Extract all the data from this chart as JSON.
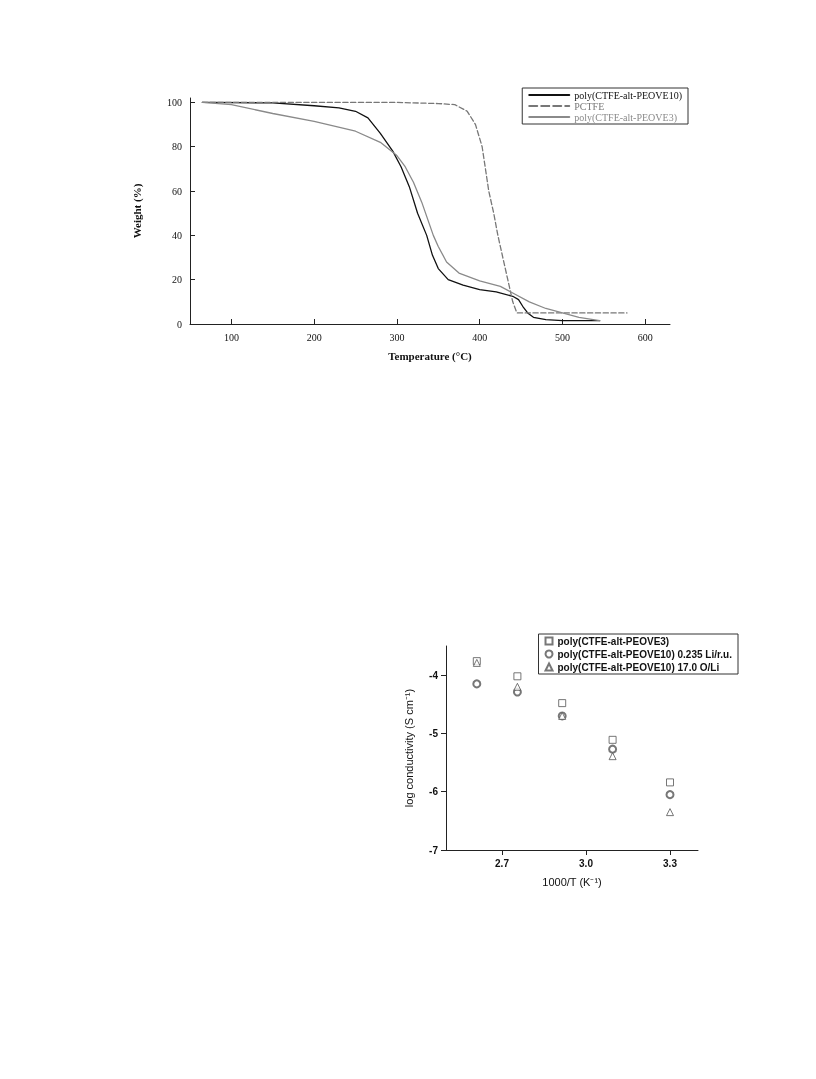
{
  "chart_data": [
    {
      "type": "line",
      "xlabel": "Temperature (°C)",
      "ylabel": "Weight (%)",
      "xlim": [
        50,
        630
      ],
      "xticks": [
        100,
        200,
        300,
        400,
        500,
        600
      ],
      "ylim": [
        0,
        102
      ],
      "yticks": [
        0,
        20,
        40,
        60,
        80,
        100
      ],
      "grid": false,
      "legend": "top right",
      "marker": "none",
      "series": [
        {
          "name": "poly(CTFE-alt-PEOVE10)",
          "color": "#111111",
          "line_style": "solid",
          "x": [
            65,
            150,
            200,
            230,
            250,
            265,
            280,
            295,
            305,
            315,
            325,
            336,
            343,
            350,
            362,
            380,
            400,
            420,
            440,
            447,
            452,
            458,
            465,
            480,
            500,
            545
          ],
          "values": [
            100,
            99.8,
            98.5,
            97.5,
            96,
            93,
            86,
            78,
            71,
            62,
            50,
            40,
            31,
            25,
            20,
            17.5,
            15.5,
            14.5,
            12.5,
            11,
            8,
            5,
            3,
            2,
            1.5,
            1.5
          ]
        },
        {
          "name": "PCTFE",
          "color": "#777777",
          "line_style": "dashed",
          "x": [
            65,
            300,
            350,
            370,
            385,
            395,
            403,
            411,
            417,
            422,
            428,
            434,
            440,
            445,
            500,
            578
          ],
          "values": [
            100,
            100,
            99.5,
            99,
            96,
            90,
            80,
            60,
            50,
            40,
            30,
            20,
            10,
            5,
            5,
            5
          ]
        },
        {
          "name": "poly(CTFE-alt-PEOVE3)",
          "color": "#8a8a8a",
          "line_style": "solid",
          "x": [
            65,
            100,
            150,
            200,
            250,
            280,
            300,
            310,
            320,
            330,
            344,
            350,
            360,
            375,
            400,
            425,
            440,
            460,
            480,
            500,
            520,
            545
          ],
          "values": [
            100,
            99,
            95,
            91.5,
            87,
            82,
            76,
            71,
            64,
            55,
            40,
            35,
            28,
            23,
            19.5,
            17,
            14,
            10,
            7,
            5,
            3,
            1.5
          ]
        }
      ]
    },
    {
      "type": "scatter",
      "xlabel": "1000/T (K⁻¹)",
      "ylabel": "log conductivity (S cm⁻¹)",
      "xlim": [
        2.5,
        3.4
      ],
      "xticks": [
        {
          "value": 2.7,
          "label": "2.7"
        },
        {
          "value": 3.0,
          "label": "3.0"
        },
        {
          "value": 3.3,
          "label": "3.3"
        }
      ],
      "ylim": [
        -7,
        -3.5
      ],
      "yticks": [
        -7,
        -6,
        -5,
        -4
      ],
      "grid": false,
      "legend": "top right",
      "x": [
        2.61,
        2.755,
        2.915,
        3.095,
        3.3
      ],
      "series": [
        {
          "name": "poly(CTFE-alt-PEOVE3)",
          "color": "#555555",
          "marker": "square",
          "values": [
            -3.76,
            -4.02,
            -4.48,
            -5.11,
            -5.84
          ]
        },
        {
          "name": "poly(CTFE-alt-PEOVE10) 0.235 Li/r.u.",
          "color": "#555555",
          "marker": "circle",
          "values": [
            -4.15,
            -4.29,
            -4.7,
            -5.27,
            -6.05
          ]
        },
        {
          "name": "poly(CTFE-alt-PEOVE10) 17.0 O/Li",
          "color": "#555555",
          "marker": "triangle",
          "values": [
            -3.79,
            -4.2,
            -4.7,
            -5.39,
            -6.35
          ]
        }
      ]
    }
  ]
}
